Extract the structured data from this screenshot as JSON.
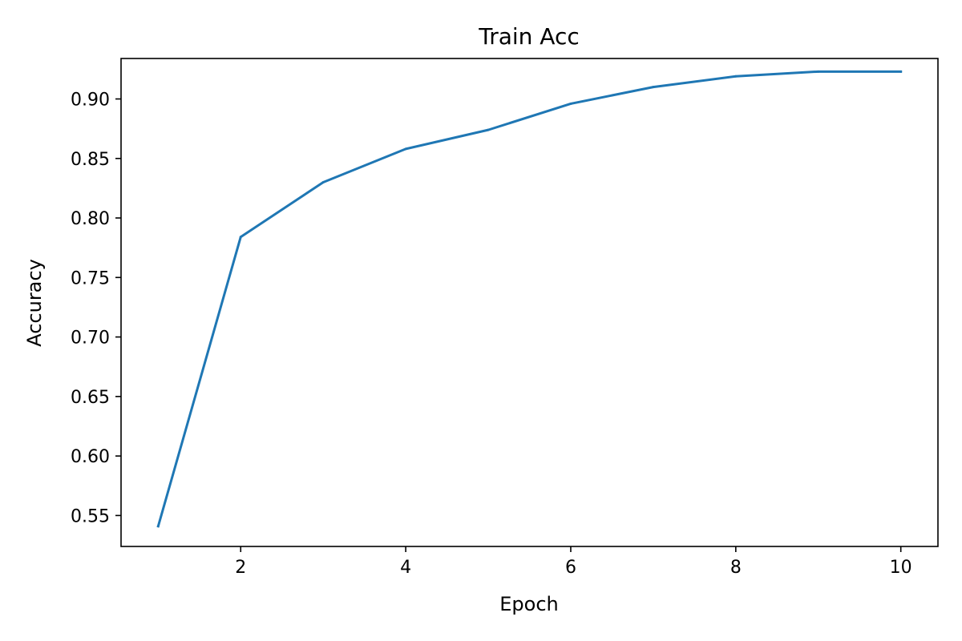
{
  "chart_data": {
    "type": "line",
    "title": "Train Acc",
    "xlabel": "Epoch",
    "ylabel": "Accuracy",
    "xlim": [
      0.55,
      10.45
    ],
    "ylim": [
      0.524,
      0.934
    ],
    "x_ticks": [
      2,
      4,
      6,
      8,
      10
    ],
    "y_ticks": [
      0.55,
      0.6,
      0.65,
      0.7,
      0.75,
      0.8,
      0.85,
      0.9
    ],
    "grid": false,
    "series": [
      {
        "color": "#1f77b4",
        "x": [
          1,
          2,
          3,
          4,
          5,
          6,
          7,
          8,
          9,
          10
        ],
        "y": [
          0.541,
          0.784,
          0.83,
          0.858,
          0.874,
          0.896,
          0.91,
          0.919,
          0.923,
          0.923
        ]
      }
    ]
  }
}
